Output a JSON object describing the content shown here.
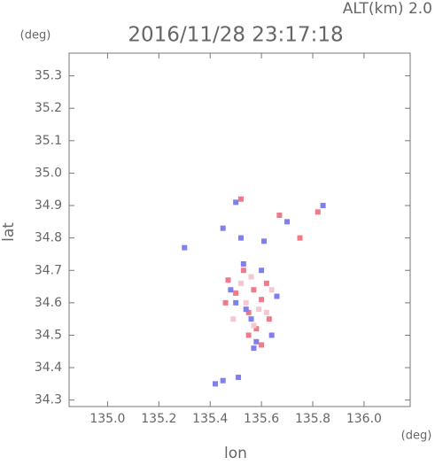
{
  "chart_data": {
    "type": "scatter",
    "title": "2016/11/28 23:17:18",
    "subtitle": "ALT(km) 2.0",
    "x_label": "lon",
    "y_label": "lat",
    "x_unit": "(deg)",
    "y_unit": "(deg)",
    "xlim": [
      134.85,
      136.18
    ],
    "ylim": [
      34.28,
      35.37
    ],
    "xticks": [
      {
        "value": 135.0,
        "label": "135.0"
      },
      {
        "value": 135.2,
        "label": "135.2"
      },
      {
        "value": 135.4,
        "label": "135.4"
      },
      {
        "value": 135.6,
        "label": "135.6"
      },
      {
        "value": 135.8,
        "label": "135.8"
      },
      {
        "value": 136.0,
        "label": "136.0"
      }
    ],
    "yticks": [
      34.3,
      34.4,
      34.5,
      34.6,
      34.7,
      34.8,
      34.9,
      {
        "value": 35.0,
        "label": "35.0"
      },
      35.1,
      35.2,
      35.3
    ],
    "series": [
      {
        "color": "#f07a8a",
        "x": [
          135.52,
          135.47,
          135.46,
          135.55,
          135.6,
          135.63,
          135.58,
          135.67,
          135.75,
          135.82,
          135.55,
          135.6,
          135.5,
          135.57,
          135.62,
          135.53
        ],
        "y": [
          34.92,
          34.67,
          34.6,
          34.57,
          34.61,
          34.55,
          34.52,
          34.87,
          34.8,
          34.88,
          34.5,
          34.47,
          34.63,
          34.64,
          34.66,
          34.7
        ]
      },
      {
        "color": "#7f7ff0",
        "x": [
          135.5,
          135.45,
          135.52,
          135.61,
          135.7,
          135.84,
          135.48,
          135.54,
          135.56,
          135.64,
          135.57,
          135.5,
          135.6,
          135.66,
          135.42,
          135.45,
          135.51,
          135.3,
          135.58,
          135.53
        ],
        "y": [
          34.91,
          34.83,
          34.8,
          34.79,
          34.85,
          34.9,
          34.64,
          34.58,
          34.55,
          34.5,
          34.46,
          34.6,
          34.7,
          34.62,
          34.35,
          34.36,
          34.37,
          34.77,
          34.48,
          34.72
        ]
      },
      {
        "color": "#f4c8d0",
        "x": [
          135.54,
          135.59,
          135.52,
          135.62,
          135.56,
          135.49,
          135.64,
          135.57
        ],
        "y": [
          34.6,
          34.58,
          34.66,
          34.57,
          34.68,
          34.55,
          34.64,
          34.53
        ]
      }
    ]
  }
}
